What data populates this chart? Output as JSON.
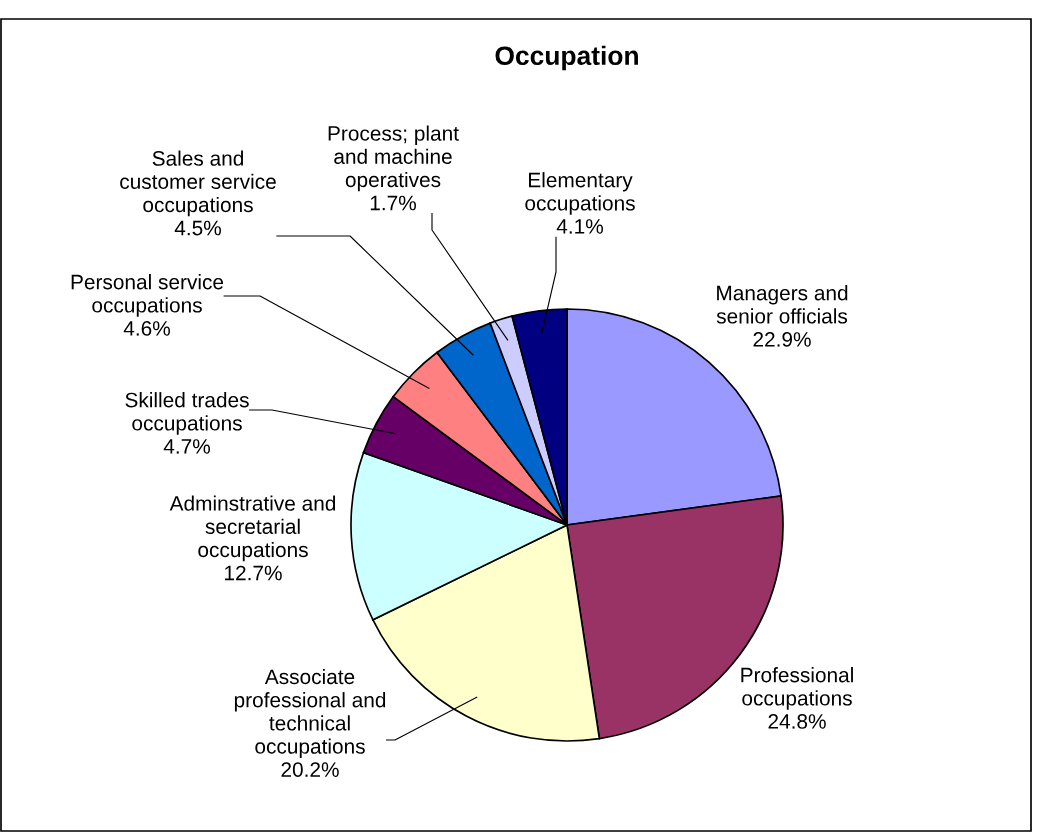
{
  "chart_data": {
    "type": "pie",
    "title": "Occupation",
    "categories": [
      "Managers and\nsenior officials",
      "Professional\noccupations",
      "Associate\nprofessional and\ntechnical\noccupations",
      "Adminstrative and\nsecretarial\noccupations",
      "Skilled trades\noccupations",
      "Personal service\noccupations",
      "Sales and\ncustomer service\noccupations",
      "Process; plant\nand machine\noperatives",
      "Elementary\noccupations"
    ],
    "values": [
      22.9,
      24.8,
      20.2,
      12.7,
      4.7,
      4.6,
      4.5,
      1.7,
      4.1
    ],
    "colors": [
      "#9999ff",
      "#993366",
      "#ffffcc",
      "#ccffff",
      "#660066",
      "#ff8080",
      "#0066cc",
      "#ccccff",
      "#000080"
    ],
    "value_labels": [
      "22.9%",
      "24.8%",
      "20.2%",
      "12.7%",
      "4.7%",
      "4.6%",
      "4.5%",
      "1.7%",
      "4.1%"
    ],
    "legend": false
  }
}
